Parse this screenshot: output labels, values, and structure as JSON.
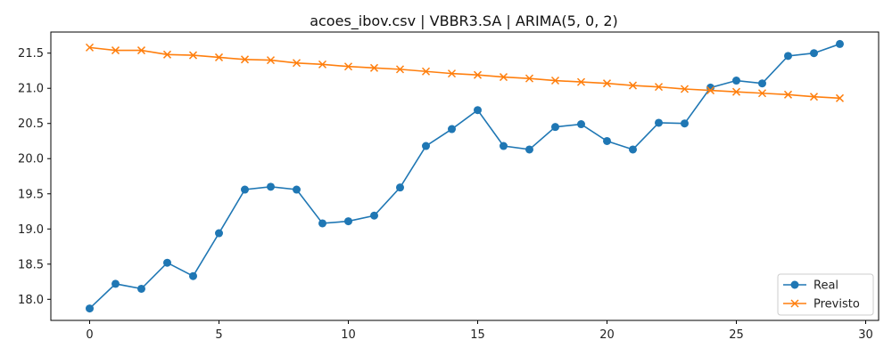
{
  "chart_data": {
    "type": "line",
    "title": "acoes_ibov.csv | VBBR3.SA | ARIMA(5, 0, 2)",
    "xlabel": "",
    "ylabel": "",
    "xlim": [
      -1.5,
      30.5
    ],
    "ylim": [
      17.7,
      21.8
    ],
    "x_ticks": [
      0,
      5,
      10,
      15,
      20,
      25,
      30
    ],
    "y_ticks": [
      18.0,
      18.5,
      19.0,
      19.5,
      20.0,
      20.5,
      21.0,
      21.5
    ],
    "x_tick_labels": [
      "0",
      "5",
      "10",
      "15",
      "20",
      "25",
      "30"
    ],
    "y_tick_labels": [
      "18.0",
      "18.5",
      "19.0",
      "19.5",
      "20.0",
      "20.5",
      "21.0",
      "21.5"
    ],
    "grid": false,
    "legend_position": "lower-right",
    "x": [
      0,
      1,
      2,
      3,
      4,
      5,
      6,
      7,
      8,
      9,
      10,
      11,
      12,
      13,
      14,
      15,
      16,
      17,
      18,
      19,
      20,
      21,
      22,
      23,
      24,
      25,
      26,
      27,
      28,
      29
    ],
    "series": [
      {
        "name": "Real",
        "color": "#1f77b4",
        "marker": "circle",
        "values": [
          17.87,
          18.22,
          18.15,
          18.52,
          18.33,
          18.94,
          19.56,
          19.6,
          19.56,
          19.08,
          19.11,
          19.19,
          19.59,
          20.18,
          20.42,
          20.69,
          20.18,
          20.13,
          20.45,
          20.49,
          20.25,
          20.13,
          20.51,
          20.5,
          21.01,
          21.11,
          21.07,
          21.46,
          21.5,
          21.63
        ]
      },
      {
        "name": "Previsto",
        "color": "#ff7f0e",
        "marker": "x",
        "values": [
          21.58,
          21.54,
          21.54,
          21.48,
          21.47,
          21.44,
          21.41,
          21.4,
          21.36,
          21.34,
          21.31,
          21.29,
          21.27,
          21.24,
          21.21,
          21.19,
          21.16,
          21.14,
          21.11,
          21.09,
          21.07,
          21.04,
          21.02,
          20.99,
          20.97,
          20.95,
          20.93,
          20.91,
          20.88,
          20.86
        ]
      }
    ]
  }
}
